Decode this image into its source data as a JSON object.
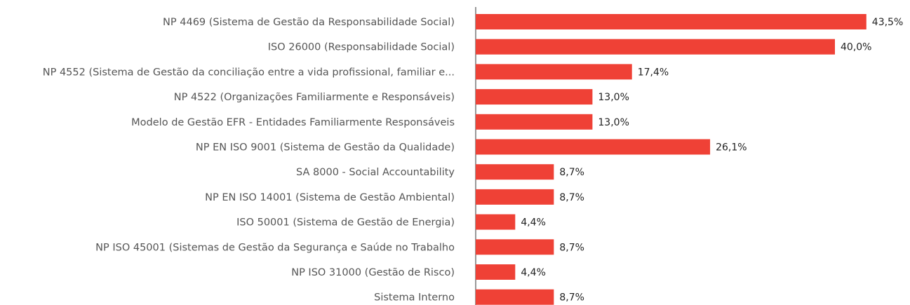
{
  "chart_data": {
    "type": "bar",
    "orientation": "horizontal",
    "color": "#ef4136",
    "categories": [
      "NP 4469 (Sistema de Gestão da Responsabilidade Social)",
      "ISO 26000 (Responsabilidade Social)",
      "NP 4552 (Sistema de Gestão da conciliação entre a vida profissional, familiar e...",
      "NP 4522 (Organizações Familiarmente e Responsáveis)",
      "Modelo de Gestão EFR - Entidades Familiarmente Responsáveis",
      "NP EN ISO 9001 (Sistema de Gestão da Qualidade)",
      "SA 8000 - Social Accountability",
      "NP EN ISO 14001 (Sistema de Gestão Ambiental)",
      "ISO 50001 (Sistema de Gestão de Energia)",
      "NP ISO 45001 (Sistemas de Gestão da Segurança e Saúde no Trabalho",
      "NP ISO 31000 (Gestão de Risco)",
      "Sistema Interno"
    ],
    "values": [
      43.5,
      40.0,
      17.4,
      13.0,
      13.0,
      26.1,
      8.7,
      8.7,
      4.4,
      8.7,
      4.4,
      8.7
    ],
    "value_labels": [
      "43,5%",
      "40,0%",
      "17,4%",
      "13,0%",
      "13,0%",
      "26,1%",
      "8,7%",
      "8,7%",
      "4,4%",
      "8,7%",
      "4,4%",
      "8,7%"
    ]
  }
}
